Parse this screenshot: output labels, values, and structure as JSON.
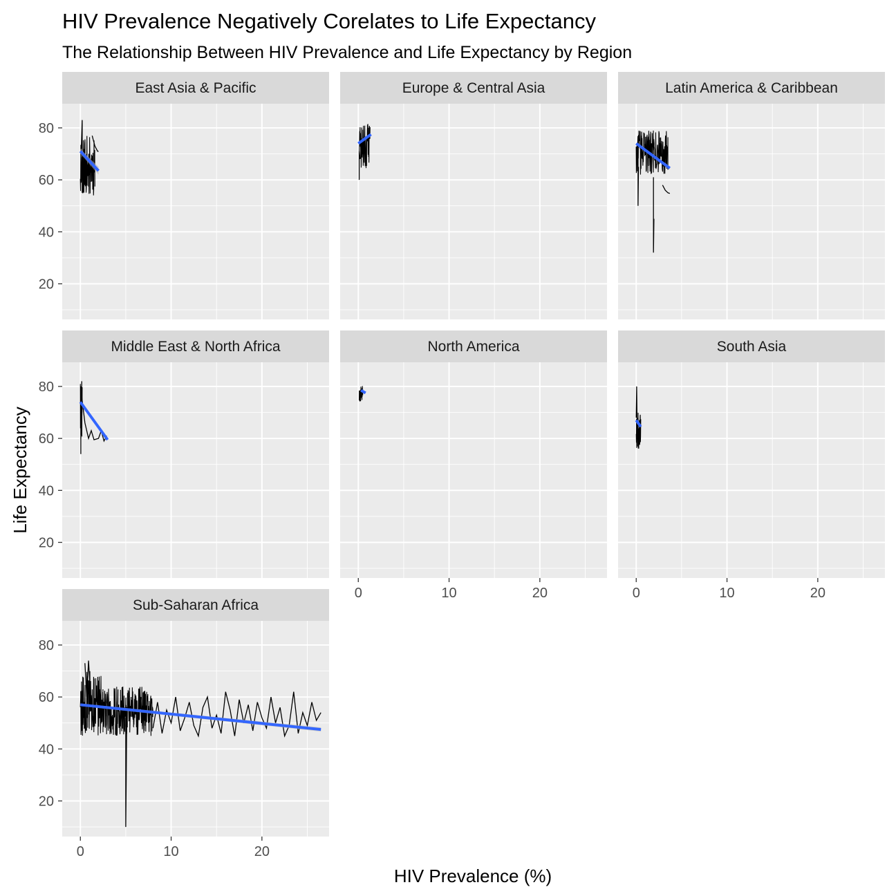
{
  "chart_data": {
    "type": "line",
    "title": "HIV Prevalence Negatively Corelates to Life Expectancy",
    "subtitle": "The Relationship Between HIV Prevalence and Life Expectancy by Region",
    "xlabel": "HIV Prevalence (%)",
    "ylabel": "Life Expectancy",
    "xlim": [
      -2,
      27.4
    ],
    "ylim": [
      6.3,
      89.3
    ],
    "x_ticks": [
      0,
      10,
      20
    ],
    "y_ticks": [
      20,
      40,
      60,
      80
    ],
    "grid": true,
    "legend": "none",
    "colors": {
      "panel_bg": "#ebebeb",
      "strip_bg": "#d9d9d9",
      "grid": "#ffffff",
      "line": "#000000",
      "trend": "#3366ff",
      "band": "#b3b3b3"
    },
    "panels": [
      {
        "name": "East Asia & Pacific",
        "trend": {
          "x": [
            0,
            2
          ],
          "y": [
            71,
            63.5
          ]
        },
        "band_halfwidth": 1.5,
        "band": true,
        "seed": 11,
        "texture_ranges": [
          {
            "x": [
              0,
              1.6
            ],
            "y": [
              54,
              77
            ]
          }
        ],
        "lines": [
          {
            "x": [
              0.1,
              0.2,
              0.2
            ],
            "y": [
              72,
              83,
              55
            ]
          },
          {
            "x": [
              1.3,
              1.6,
              1.9,
              2.0
            ],
            "y": [
              77,
              73,
              71,
              71
            ]
          }
        ]
      },
      {
        "name": "Europe & Central Asia",
        "trend": {
          "x": [
            0,
            1.4
          ],
          "y": [
            74,
            77.5
          ]
        },
        "band_halfwidth": 0.8,
        "band": false,
        "seed": 23,
        "texture_ranges": [
          {
            "x": [
              0.1,
              1.3
            ],
            "y": [
              64,
              82
            ]
          }
        ],
        "lines": [
          {
            "x": [
              0.1,
              0.1,
              0.2
            ],
            "y": [
              60,
              71,
              68
            ]
          }
        ]
      },
      {
        "name": "Latin America & Caribbean",
        "trend": {
          "x": [
            0,
            3.7
          ],
          "y": [
            74,
            64.5
          ]
        },
        "band_halfwidth": 1,
        "band": false,
        "seed": 37,
        "texture_ranges": [
          {
            "x": [
              0,
              3.5
            ],
            "y": [
              62,
              79
            ]
          }
        ],
        "lines": [
          {
            "x": [
              0.2,
              0.2,
              0.25
            ],
            "y": [
              72,
              50,
              65
            ]
          },
          {
            "x": [
              1.9,
              1.9,
              1.95
            ],
            "y": [
              61,
              32,
              45
            ]
          },
          {
            "x": [
              2.9,
              3.2,
              3.5,
              3.7
            ],
            "y": [
              58,
              56,
              55,
              54.8
            ]
          }
        ]
      },
      {
        "name": "Middle East & North Africa",
        "trend": {
          "x": [
            0,
            3
          ],
          "y": [
            74,
            59.5
          ]
        },
        "band_halfwidth": 0.8,
        "band": false,
        "seed": 41,
        "texture_ranges": [
          {
            "x": [
              0,
              0.2
            ],
            "y": [
              60,
              81
            ]
          }
        ],
        "lines": [
          {
            "x": [
              0.05,
              0.05,
              0.1,
              0.15
            ],
            "y": [
              54,
              80,
              70,
              82
            ]
          },
          {
            "x": [
              0.15,
              0.5,
              0.9,
              1.2,
              1.5,
              2.0,
              2.3,
              2.6,
              2.9
            ],
            "y": [
              76,
              66,
              60,
              63,
              59.5,
              60,
              63,
              59,
              61
            ]
          }
        ]
      },
      {
        "name": "North America",
        "trend": {
          "x": [
            0.3,
            0.8
          ],
          "y": [
            78.5,
            77.5
          ]
        },
        "band_halfwidth": 0.5,
        "band": false,
        "seed": 53,
        "texture_ranges": [
          {
            "x": [
              0.1,
              0.5
            ],
            "y": [
              74,
              81
            ]
          }
        ],
        "lines": []
      },
      {
        "name": "South Asia",
        "trend": {
          "x": [
            0,
            0.5
          ],
          "y": [
            67,
            64.5
          ]
        },
        "band_halfwidth": 0.5,
        "band": false,
        "seed": 67,
        "texture_ranges": [
          {
            "x": [
              0,
              0.5
            ],
            "y": [
              56,
              72
            ]
          }
        ],
        "lines": [
          {
            "x": [
              0,
              0.05,
              0.1
            ],
            "y": [
              68,
              80,
              63
            ]
          }
        ]
      },
      {
        "name": "Sub-Saharan Africa",
        "trend": {
          "x": [
            0,
            26.5
          ],
          "y": [
            57,
            47.5
          ]
        },
        "band_halfwidth": 0.8,
        "band": true,
        "seed": 79,
        "texture_ranges": [
          {
            "x": [
              0,
              2.5
            ],
            "y": [
              45,
              70
            ]
          },
          {
            "x": [
              2.5,
              8
            ],
            "y": [
              45,
              64
            ]
          }
        ],
        "lines": [
          {
            "x": [
              0.5,
              0.7,
              0.9,
              1.1
            ],
            "y": [
              73,
              60,
              74,
              62
            ]
          },
          {
            "x": [
              5.0,
              5.0,
              5.05,
              5.1
            ],
            "y": [
              52,
              10,
              28,
              50
            ]
          },
          {
            "x": [
              8,
              8.5,
              9,
              9.5,
              10,
              10.5,
              11,
              11.5,
              12,
              12.5,
              13,
              13.5,
              14,
              14.5,
              15,
              15.5,
              16,
              16.5,
              17,
              17.5,
              18,
              18.5,
              19,
              19.5,
              20,
              20.5,
              21,
              21.5,
              22,
              22.5,
              23,
              23.5,
              24,
              24.5,
              25,
              25.5,
              26,
              26.5
            ],
            "y": [
              48,
              58,
              46,
              55,
              50,
              60,
              47,
              52,
              58,
              49,
              45,
              56,
              60,
              48,
              53,
              46,
              62,
              55,
              45,
              59,
              50,
              57,
              47,
              58,
              52,
              48,
              60,
              50,
              56,
              45,
              49,
              62,
              46,
              54,
              49,
              58,
              51,
              54
            ]
          }
        ]
      }
    ]
  }
}
